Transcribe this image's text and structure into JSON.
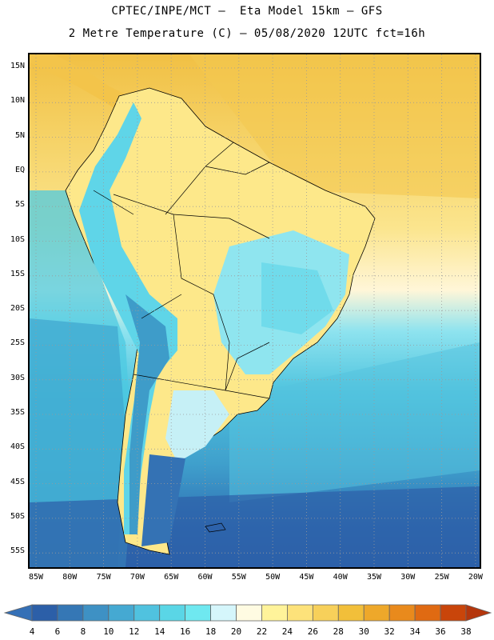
{
  "header": {
    "line1": "CPTEC/INPE/MCT –  Eta Model 15km – GFS",
    "line2": "2 Metre Temperature (C) – 05/08/2020 12UTC fct=16h"
  },
  "map": {
    "lat_labels": [
      "15N",
      "10N",
      "5N",
      "EQ",
      "5S",
      "10S",
      "15S",
      "20S",
      "25S",
      "30S",
      "35S",
      "40S",
      "45S",
      "50S",
      "55S"
    ],
    "lon_labels": [
      "85W",
      "80W",
      "75W",
      "70W",
      "65W",
      "60W",
      "55W",
      "50W",
      "45W",
      "40W",
      "35W",
      "30W",
      "25W",
      "20W"
    ],
    "grid": "dotted"
  },
  "colorbar": {
    "ticks": [
      "4",
      "6",
      "8",
      "10",
      "12",
      "14",
      "16",
      "18",
      "20",
      "22",
      "24",
      "26",
      "28",
      "30",
      "32",
      "34",
      "36",
      "38"
    ],
    "colors": [
      "#2c5fa8",
      "#3577b5",
      "#3e91c4",
      "#45a9d2",
      "#50c2df",
      "#5ad6e6",
      "#6fe8f0",
      "#d5f6fb",
      "#fffbe2",
      "#fff39a",
      "#fde27a",
      "#f7d05a",
      "#f2bf3a",
      "#eea82a",
      "#e98a1c",
      "#e06a12",
      "#c9450a"
    ],
    "below_color": "#3570b6",
    "above_color": "#b4360c"
  }
}
